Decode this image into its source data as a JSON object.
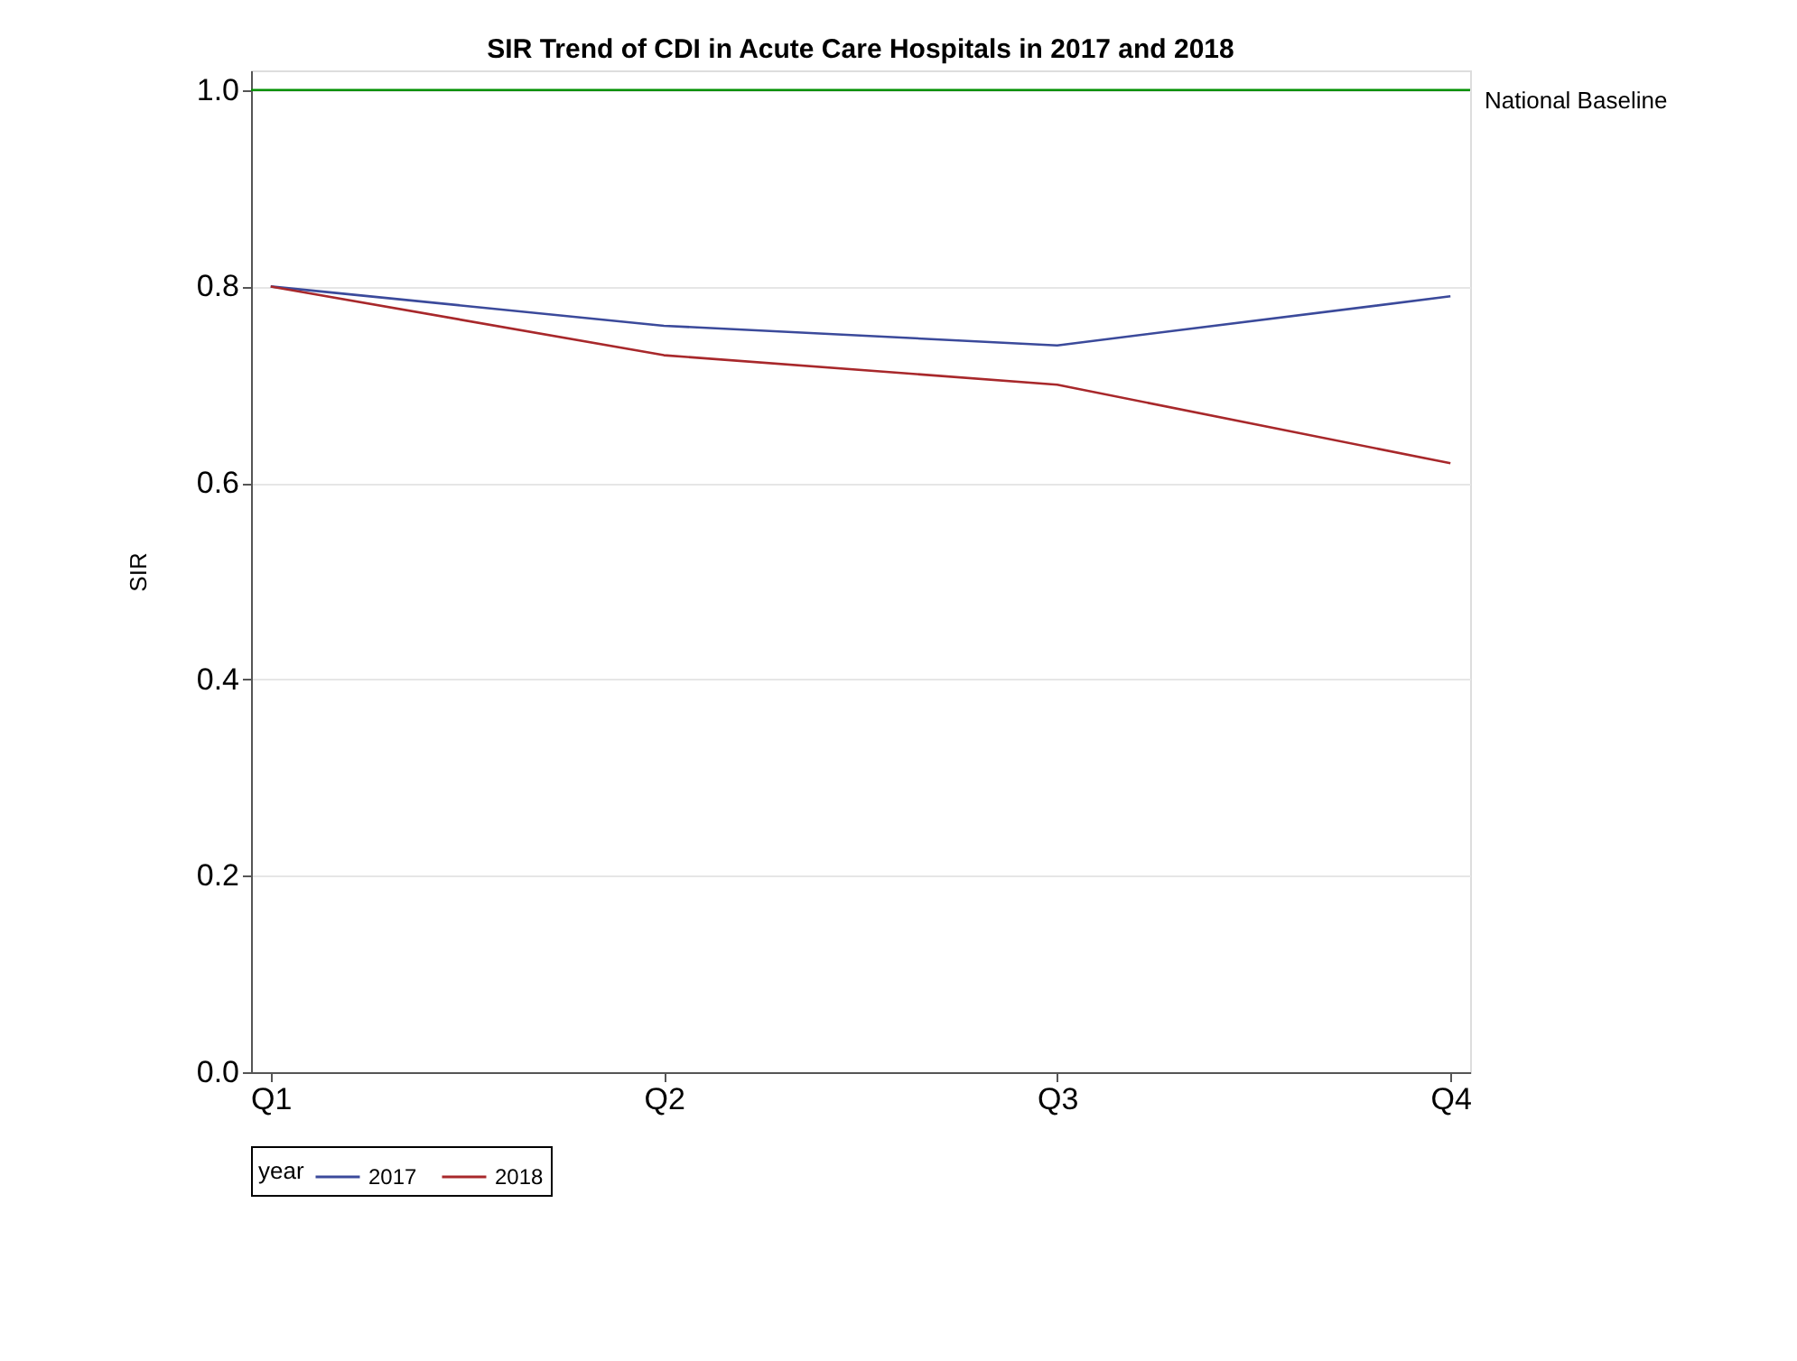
{
  "chart_data": {
    "type": "line",
    "title": "SIR Trend of CDI in Acute Care Hospitals in 2017 and 2018",
    "ylabel": "SIR",
    "legend_title": "year",
    "categories": [
      "Q1",
      "Q2",
      "Q3",
      "Q4"
    ],
    "series": [
      {
        "name": "2017",
        "color": "#3b4a9b",
        "values": [
          0.8,
          0.76,
          0.74,
          0.79
        ]
      },
      {
        "name": "2018",
        "color": "#a8282b",
        "values": [
          0.8,
          0.73,
          0.7,
          0.62
        ]
      }
    ],
    "ylim": [
      0,
      1.02
    ],
    "yticks": [
      {
        "value": 0,
        "label": "0.0"
      },
      0.2,
      0.4,
      0.6,
      0.8,
      {
        "value": 1,
        "label": "1.0"
      }
    ],
    "ref_lines": [
      {
        "axis": "y",
        "value": 1.0,
        "label": "National Baseline",
        "color": "#009000"
      }
    ],
    "grid": "y",
    "legend": "bottom",
    "marker": "none",
    "line_style": "solid"
  }
}
